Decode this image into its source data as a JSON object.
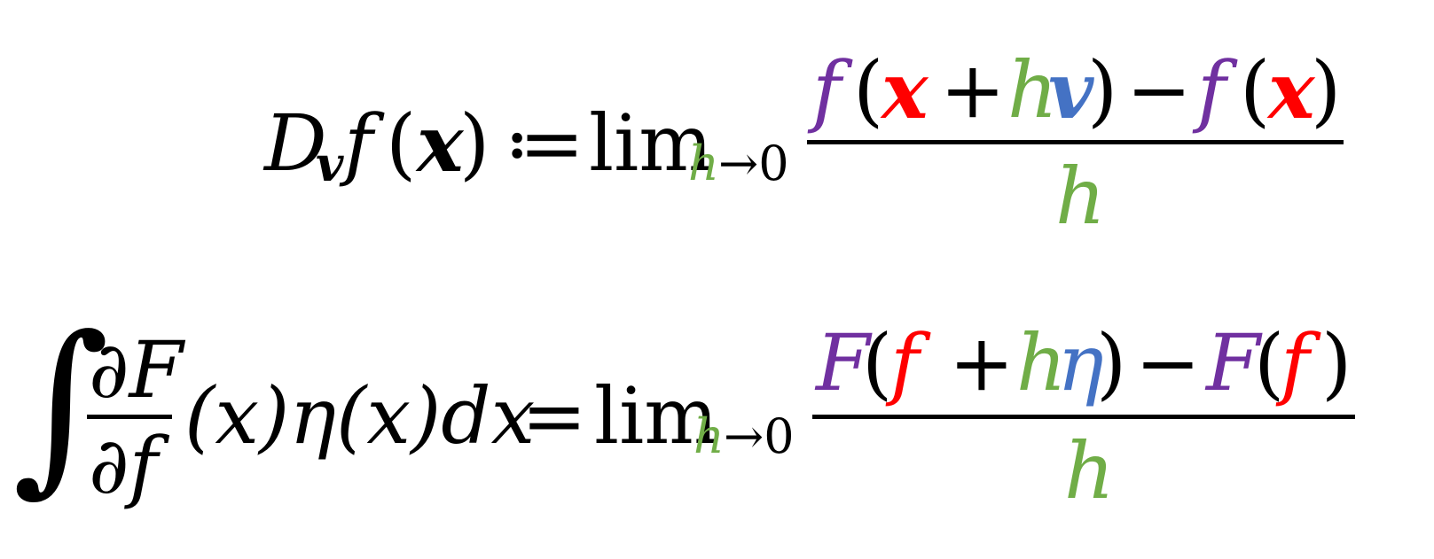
{
  "equation_1": {
    "lhs": {
      "D": "D",
      "v_sub": "v",
      "f": "f",
      "open_paren": "(",
      "x": "x",
      "close_paren": ")"
    },
    "defeq": "≔",
    "lim": "lim",
    "lim_sub_h": "h",
    "lim_sub_arrow": "→0",
    "numerator": {
      "f1": "f",
      "open1": "(",
      "x1": "x",
      "plus": "+",
      "h": "h",
      "v": "v",
      "close1": ")",
      "minus": "−",
      "f2": "f",
      "open2": "(",
      "x2": "x",
      "close2": ")"
    },
    "denominator": "h"
  },
  "equation_2": {
    "integral": "∫",
    "frac_num": "∂F",
    "frac_den": "∂f",
    "args": "(x)η(x)dx",
    "equals": "=",
    "lim": "lim",
    "lim_sub_h": "h",
    "lim_sub_arrow": "→0",
    "numerator": {
      "F1": "F",
      "open1": "(",
      "f1": "f",
      "plus": "+",
      "h": "h",
      "eta": "η",
      "close1": ")",
      "minus": "−",
      "F2": "F",
      "open2": "(",
      "f2": "f",
      "close2": ")"
    },
    "denominator": "h"
  },
  "colors": {
    "function": "#7030A0",
    "argument": "#FF0000",
    "step": "#70AD47",
    "direction": "#4472C4"
  }
}
